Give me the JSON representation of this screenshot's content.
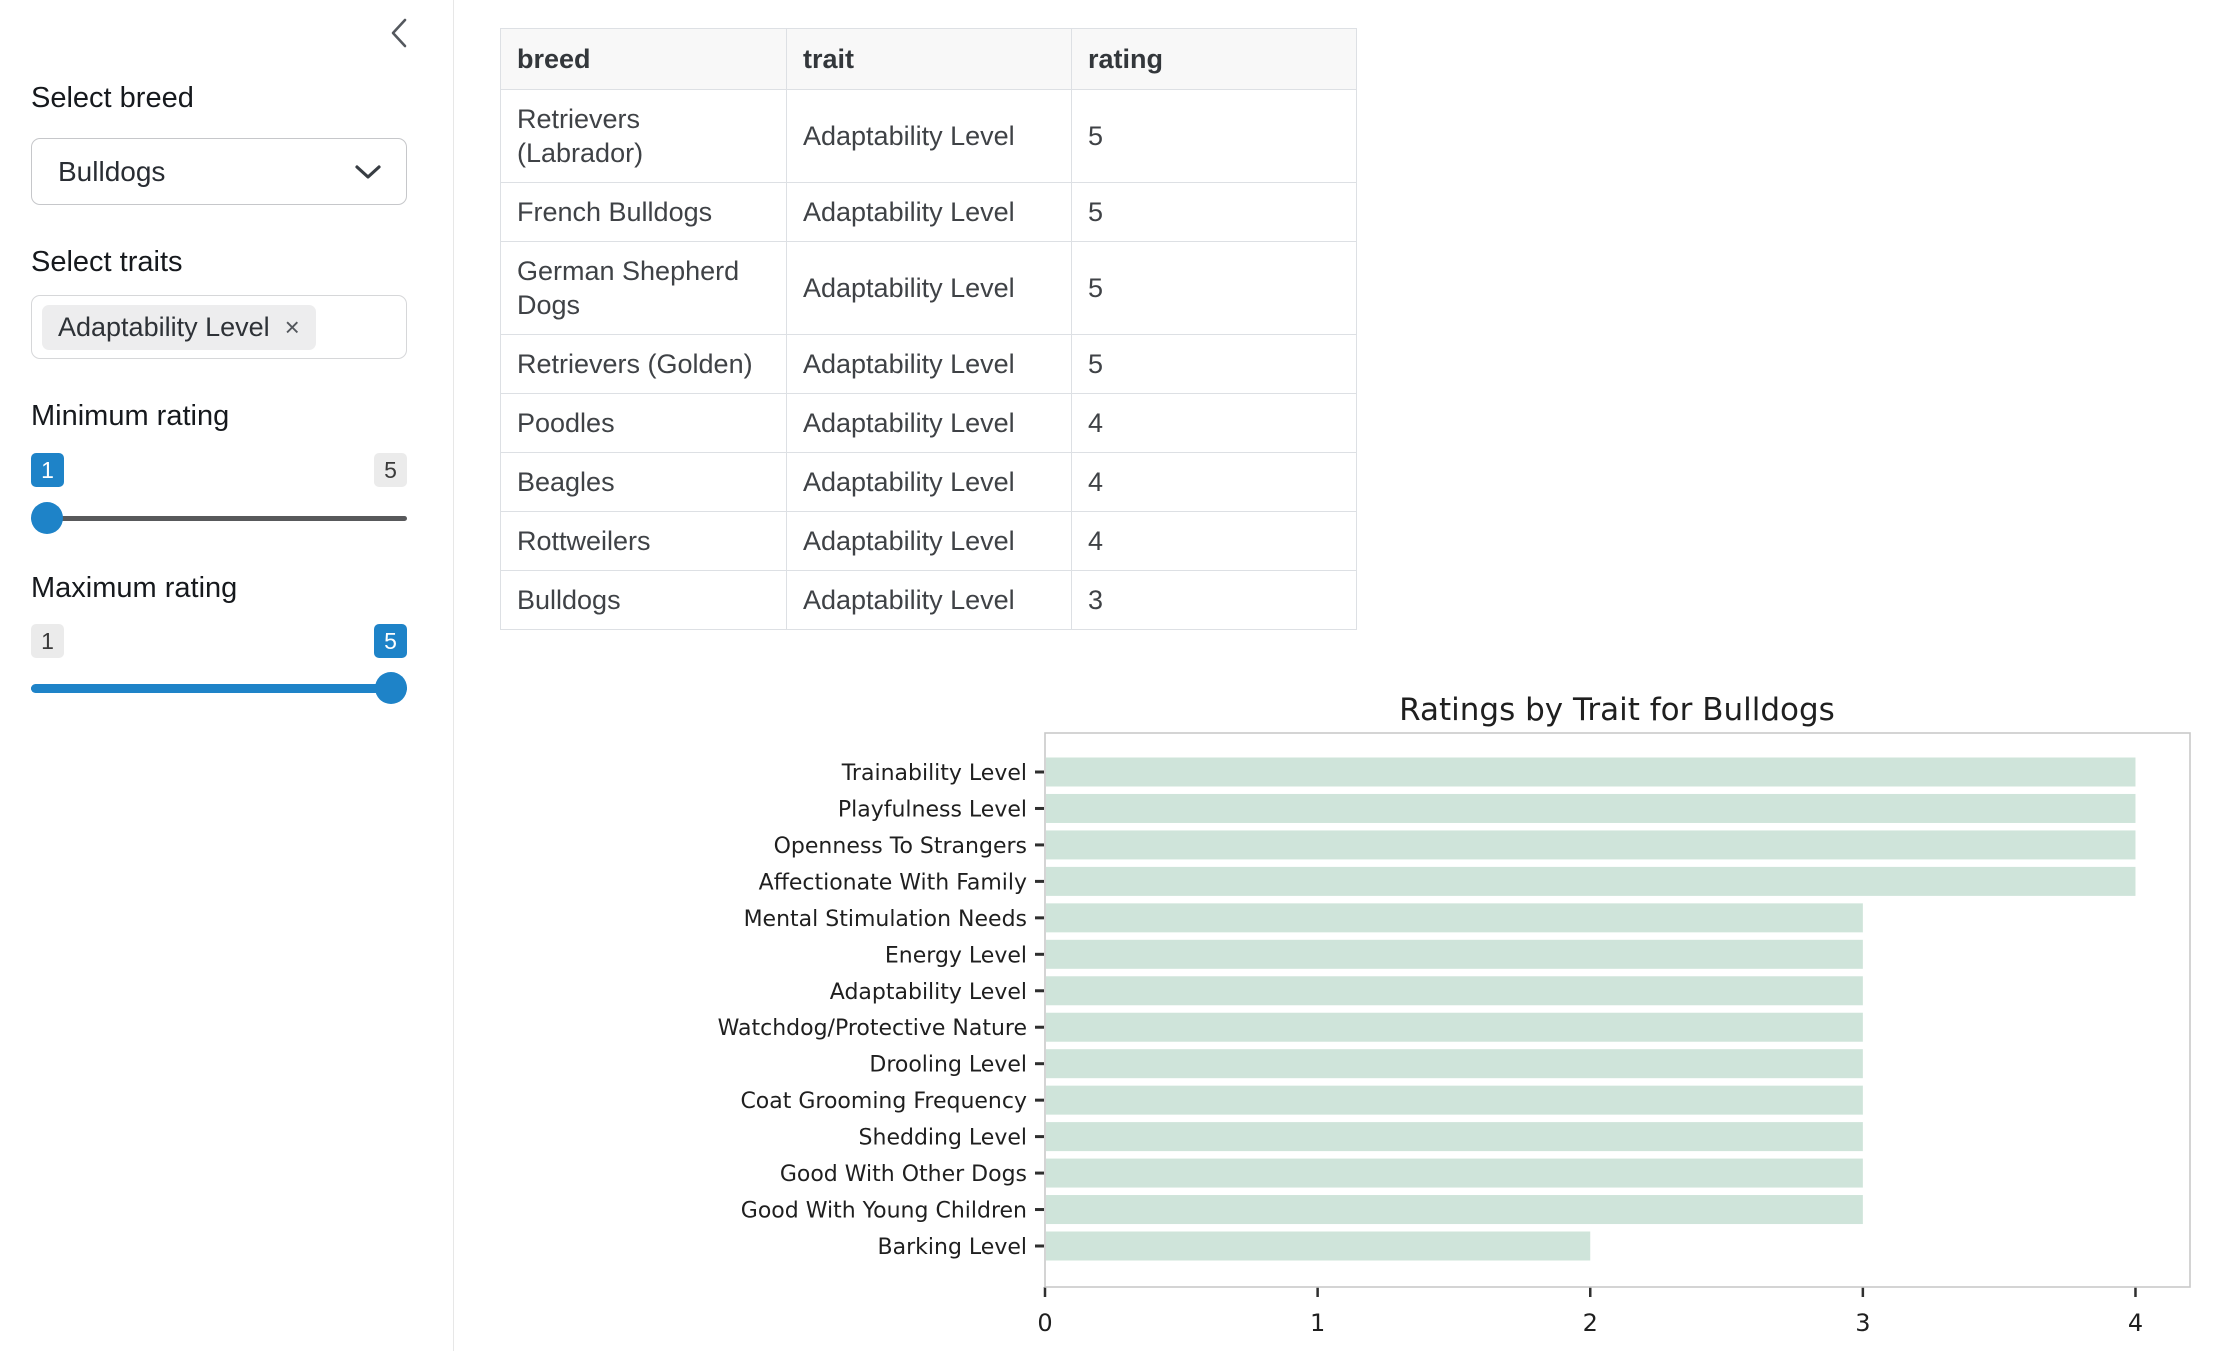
{
  "sidebar": {
    "collapse_icon": "chevron-left",
    "breed_select": {
      "label": "Select breed",
      "value": "Bulldogs"
    },
    "trait_select": {
      "label": "Select traits",
      "selected": [
        {
          "label": "Adaptability Level",
          "remove_symbol": "×"
        }
      ]
    },
    "min_rating": {
      "label": "Minimum rating",
      "value": "1",
      "range_min": "1",
      "range_max": "5"
    },
    "max_rating": {
      "label": "Maximum rating",
      "value": "5",
      "range_min": "1",
      "range_max": "5"
    }
  },
  "table": {
    "columns": [
      "breed",
      "trait",
      "rating"
    ],
    "rows": [
      [
        "Retrievers (Labrador)",
        "Adaptability Level",
        "5"
      ],
      [
        "French Bulldogs",
        "Adaptability Level",
        "5"
      ],
      [
        "German Shepherd Dogs",
        "Adaptability Level",
        "5"
      ],
      [
        "Retrievers (Golden)",
        "Adaptability Level",
        "5"
      ],
      [
        "Poodles",
        "Adaptability Level",
        "4"
      ],
      [
        "Beagles",
        "Adaptability Level",
        "4"
      ],
      [
        "Rottweilers",
        "Adaptability Level",
        "4"
      ],
      [
        "Bulldogs",
        "Adaptability Level",
        "3"
      ]
    ]
  },
  "chart_data": {
    "type": "bar",
    "orientation": "horizontal",
    "title": "Ratings by Trait for Bulldogs",
    "categories": [
      "Trainability Level",
      "Playfulness Level",
      "Openness To Strangers",
      "Affectionate With Family",
      "Mental Stimulation Needs",
      "Energy Level",
      "Adaptability Level",
      "Watchdog/Protective Nature",
      "Drooling Level",
      "Coat Grooming Frequency",
      "Shedding Level",
      "Good With Other Dogs",
      "Good With Young Children",
      "Barking Level"
    ],
    "values": [
      4,
      4,
      4,
      4,
      3,
      3,
      3,
      3,
      3,
      3,
      3,
      3,
      3,
      2
    ],
    "xlabel": "",
    "ylabel": "",
    "xticks": [
      0,
      1,
      2,
      3,
      4
    ],
    "xlim": [
      0,
      4.2
    ],
    "grid": false,
    "legend": null,
    "bar_color": "#cfe4da"
  },
  "colors": {
    "accent_blue": "#1e83c8",
    "bar_green": "#cfe4da",
    "table_header_bg": "#f8f8f8",
    "slider_track_gray": "#58595b"
  }
}
